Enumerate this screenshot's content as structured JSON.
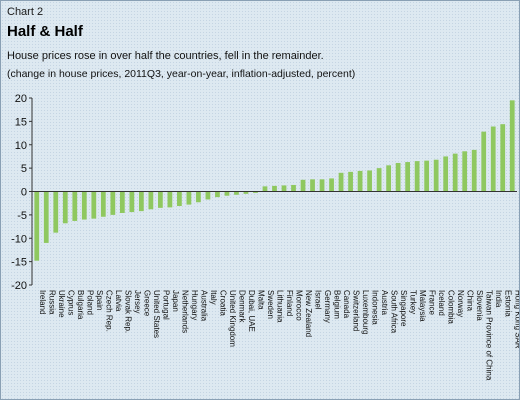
{
  "header": {
    "chart_label": "Chart 2",
    "title": "Half & Half",
    "subtitle": "House prices rose in over half the countries, fell in the remainder.",
    "note": "(change in house prices, 2011Q3, year-on-year, inflation-adjusted, percent)"
  },
  "colors": {
    "bar": "#8fc85f",
    "background": "#dde9f1",
    "axis": "#333333"
  },
  "chart_data": {
    "type": "bar",
    "title": "Half & Half",
    "subtitle": "House prices rose in over half the countries, fell in the remainder.",
    "ylabel": "",
    "xlabel": "",
    "ylim": [
      -20,
      20
    ],
    "yticks": [
      -20,
      -15,
      -10,
      -5,
      0,
      5,
      10,
      15,
      20
    ],
    "grid": false,
    "legend": "none",
    "categories": [
      "Ireland",
      "Russia",
      "Ukraine",
      "Cyprus",
      "Bulgaria",
      "Poland",
      "Spain",
      "Czech Rep.",
      "Latvia",
      "Slovak Rep.",
      "Jersey",
      "Greece",
      "United States",
      "Portugal",
      "Japan",
      "Netherlands",
      "Hungary",
      "Australia",
      "Italy",
      "Croatia",
      "United Kingdom",
      "Denmark",
      "Dubai, UAE",
      "Malta",
      "Sweden",
      "Lithuania",
      "Finland",
      "Morocco",
      "New Zealand",
      "Israel",
      "Germany",
      "Belgium",
      "Canada",
      "Switzerland",
      "Luxembourg",
      "Indonesia",
      "Austria",
      "South Africa",
      "Singapore",
      "Turkey",
      "Malaysia",
      "France",
      "Iceland",
      "Colombia",
      "Norway",
      "China",
      "Slovenia",
      "Taiwan Province of China",
      "India",
      "Estonia",
      "Hong Kong SAR"
    ],
    "values": [
      -14.8,
      -11.0,
      -8.8,
      -6.8,
      -6.3,
      -6.0,
      -5.8,
      -5.4,
      -5.0,
      -4.6,
      -4.4,
      -4.2,
      -3.8,
      -3.5,
      -3.4,
      -3.1,
      -2.8,
      -2.3,
      -1.7,
      -1.2,
      -0.9,
      -0.7,
      -0.5,
      -0.3,
      1.1,
      1.2,
      1.3,
      1.4,
      2.5,
      2.6,
      2.6,
      2.8,
      4.0,
      4.2,
      4.4,
      4.5,
      5.0,
      5.6,
      6.1,
      6.3,
      6.5,
      6.6,
      6.8,
      7.5,
      8.1,
      8.6,
      8.9,
      12.8,
      13.9,
      14.4,
      19.5
    ]
  }
}
